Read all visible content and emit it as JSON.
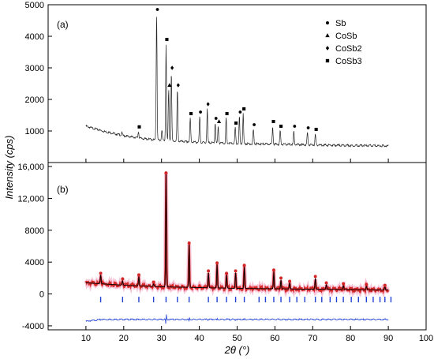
{
  "chart_data": {
    "type": "line",
    "shared_x": {
      "label": "2θ (°)",
      "range": [
        0,
        100
      ],
      "ticks": [
        10,
        20,
        30,
        40,
        50,
        60,
        70,
        80,
        90,
        100
      ]
    },
    "ylabel": "Intensity (cps)",
    "panels": [
      {
        "panel_label": "(a)",
        "ylim": [
          0,
          5000
        ],
        "yticks": [
          1000,
          2000,
          3000,
          4000,
          5000
        ],
        "legend_position": "top-right",
        "legend": [
          {
            "symbol": "circle",
            "label": "Sb"
          },
          {
            "symbol": "triangle",
            "label": "CoSb"
          },
          {
            "symbol": "diamond",
            "label": "CoSb2"
          },
          {
            "symbol": "square",
            "label": "CoSb3"
          }
        ],
        "background": [
          [
            10,
            1150
          ],
          [
            15,
            980
          ],
          [
            20,
            850
          ],
          [
            25,
            760
          ],
          [
            30,
            700
          ],
          [
            40,
            640
          ],
          [
            50,
            600
          ],
          [
            60,
            580
          ],
          [
            70,
            560
          ],
          [
            80,
            540
          ],
          [
            90,
            530
          ]
        ],
        "peaks": [
          {
            "x": 19.5,
            "y": 950,
            "marker": "none"
          },
          {
            "x": 23.9,
            "y": 980,
            "marker": "square"
          },
          {
            "x": 28.7,
            "y": 4700,
            "marker": "circle"
          },
          {
            "x": 30.1,
            "y": 1050,
            "marker": "none"
          },
          {
            "x": 31.2,
            "y": 3750,
            "marker": "square"
          },
          {
            "x": 31.9,
            "y": 2300,
            "marker": "triangle"
          },
          {
            "x": 32.6,
            "y": 2850,
            "marker": "diamond"
          },
          {
            "x": 34.2,
            "y": 2300,
            "marker": "diamond"
          },
          {
            "x": 37.6,
            "y": 1400,
            "marker": "square"
          },
          {
            "x": 40.1,
            "y": 1450,
            "marker": "circle"
          },
          {
            "x": 42.1,
            "y": 1700,
            "marker": "diamond"
          },
          {
            "x": 44.2,
            "y": 1250,
            "marker": "circle"
          },
          {
            "x": 45.0,
            "y": 1150,
            "marker": "triangle"
          },
          {
            "x": 47.1,
            "y": 1400,
            "marker": "square"
          },
          {
            "x": 49.5,
            "y": 1100,
            "marker": "square"
          },
          {
            "x": 50.6,
            "y": 1450,
            "marker": "circle"
          },
          {
            "x": 51.6,
            "y": 1550,
            "marker": "square"
          },
          {
            "x": 54.3,
            "y": 1050,
            "marker": "circle"
          },
          {
            "x": 59.4,
            "y": 1150,
            "marker": "square"
          },
          {
            "x": 61.4,
            "y": 1000,
            "marker": "square"
          },
          {
            "x": 65.0,
            "y": 1000,
            "marker": "circle"
          },
          {
            "x": 68.6,
            "y": 950,
            "marker": "circle"
          },
          {
            "x": 70.7,
            "y": 900,
            "marker": "square"
          }
        ]
      },
      {
        "panel_label": "(b)",
        "ylim": [
          -4500,
          16500
        ],
        "yticks": [
          -4000,
          0,
          4000,
          8000,
          12000,
          16000
        ],
        "ytick_labels": [
          "-4000",
          "0",
          "4000",
          "8000",
          "12,000",
          "16,000"
        ],
        "series": [
          {
            "role": "observed",
            "color": "#d62728"
          },
          {
            "role": "calculated",
            "color": "#000000"
          },
          {
            "role": "difference",
            "color": "#1f3fd6",
            "offset": -3200
          },
          {
            "role": "reflections",
            "color": "#1f3fd6"
          }
        ],
        "background": [
          [
            10,
            1400
          ],
          [
            20,
            1100
          ],
          [
            30,
            900
          ],
          [
            40,
            800
          ],
          [
            50,
            700
          ],
          [
            60,
            650
          ],
          [
            70,
            600
          ],
          [
            80,
            550
          ],
          [
            90,
            500
          ]
        ],
        "peaks": [
          {
            "x": 13.9,
            "y": 2400
          },
          {
            "x": 19.7,
            "y": 1700
          },
          {
            "x": 24.0,
            "y": 2200
          },
          {
            "x": 27.9,
            "y": 1300
          },
          {
            "x": 31.2,
            "y": 15000
          },
          {
            "x": 37.3,
            "y": 6200
          },
          {
            "x": 42.4,
            "y": 2700
          },
          {
            "x": 44.7,
            "y": 3700
          },
          {
            "x": 47.2,
            "y": 2400
          },
          {
            "x": 49.6,
            "y": 2700
          },
          {
            "x": 51.9,
            "y": 3400
          },
          {
            "x": 59.7,
            "y": 2800
          },
          {
            "x": 61.6,
            "y": 1800
          },
          {
            "x": 63.9,
            "y": 1400
          },
          {
            "x": 70.7,
            "y": 2000
          },
          {
            "x": 73.6,
            "y": 1200
          },
          {
            "x": 78.1,
            "y": 1100
          },
          {
            "x": 84.2,
            "y": 1000
          },
          {
            "x": 89.1,
            "y": 900
          }
        ],
        "reflection_positions": [
          13.9,
          19.7,
          24.0,
          27.9,
          31.2,
          34.2,
          37.3,
          42.4,
          44.7,
          47.2,
          49.6,
          51.9,
          55.8,
          57.5,
          59.7,
          61.6,
          63.9,
          65.8,
          67.9,
          70.7,
          72.4,
          74.6,
          76.3,
          78.1,
          80.2,
          82.1,
          84.2,
          86.0,
          87.8,
          89.1,
          90.7
        ]
      }
    ]
  }
}
